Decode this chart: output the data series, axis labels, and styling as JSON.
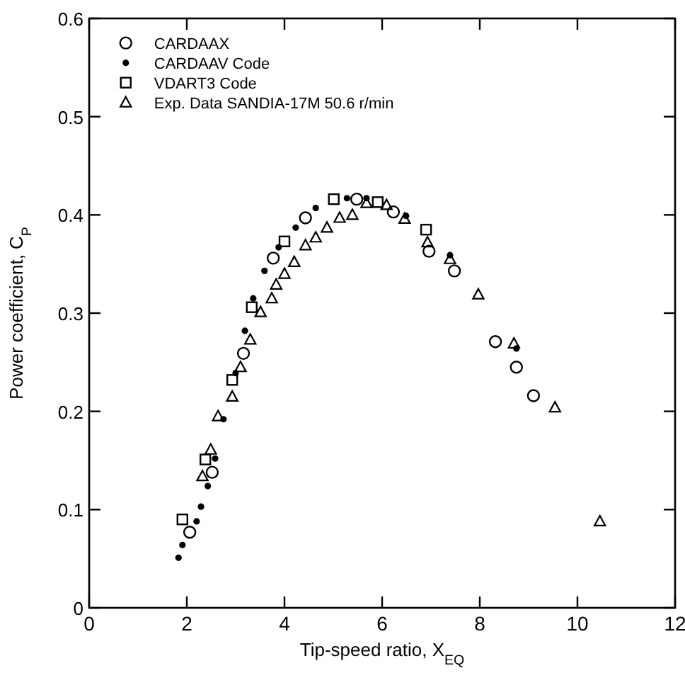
{
  "chart_data": {
    "type": "scatter",
    "xlabel": "Tip-speed ratio, X$_{EQ}$",
    "ylabel": "Power coefficient, C$_{P}$",
    "xlim": [
      0,
      12
    ],
    "ylim": [
      0,
      0.6
    ],
    "xticks": [
      0,
      2,
      4,
      6,
      8,
      10,
      12
    ],
    "yticks": [
      {
        "value": 0,
        "label": "0"
      },
      0.1,
      0.2,
      0.3,
      0.4,
      0.5,
      0.6
    ],
    "grid": false,
    "legend": "top left",
    "series": [
      {
        "name": "CARDAAX",
        "color": "#000000",
        "marker": "circle",
        "x": [
          2.06,
          2.52,
          3.16,
          3.77,
          4.43,
          5.48,
          6.23,
          6.96,
          7.48,
          8.32,
          8.75,
          9.1
        ],
        "values": [
          0.077,
          0.138,
          0.259,
          0.356,
          0.397,
          0.416,
          0.403,
          0.363,
          0.343,
          0.271,
          0.245,
          0.216
        ]
      },
      {
        "name": "CARDAAV Code",
        "color": "#000000",
        "marker": "dot",
        "x": [
          1.83,
          1.91,
          2.2,
          2.29,
          2.43,
          2.58,
          2.75,
          3.0,
          3.19,
          3.36,
          3.59,
          3.88,
          4.23,
          4.64,
          5.28,
          5.68,
          6.49,
          7.39,
          8.75
        ],
        "values": [
          0.051,
          0.064,
          0.088,
          0.103,
          0.124,
          0.152,
          0.192,
          0.239,
          0.282,
          0.315,
          0.343,
          0.367,
          0.387,
          0.407,
          0.417,
          0.417,
          0.399,
          0.359,
          0.264
        ]
      },
      {
        "name": "VDART3 Code",
        "color": "#000000",
        "marker": "square",
        "x": [
          1.91,
          2.38,
          2.93,
          3.33,
          4.0,
          5.01,
          5.91,
          6.9
        ],
        "values": [
          0.09,
          0.151,
          0.232,
          0.306,
          0.373,
          0.416,
          0.413,
          0.385
        ]
      },
      {
        "name": "Exp. Data SANDIA-17M 50.6 r/min",
        "color": "#000000",
        "marker": "triangle",
        "x": [
          2.32,
          2.49,
          2.64,
          2.93,
          3.1,
          3.3,
          3.51,
          3.74,
          3.83,
          4.0,
          4.2,
          4.43,
          4.64,
          4.87,
          5.13,
          5.39,
          5.68,
          6.09,
          6.46,
          6.93,
          7.39,
          7.97,
          8.7,
          9.54,
          10.46
        ],
        "values": [
          0.134,
          0.161,
          0.195,
          0.215,
          0.245,
          0.273,
          0.301,
          0.315,
          0.329,
          0.34,
          0.352,
          0.369,
          0.377,
          0.387,
          0.397,
          0.4,
          0.412,
          0.41,
          0.396,
          0.372,
          0.355,
          0.319,
          0.269,
          0.204,
          0.088
        ]
      }
    ]
  }
}
